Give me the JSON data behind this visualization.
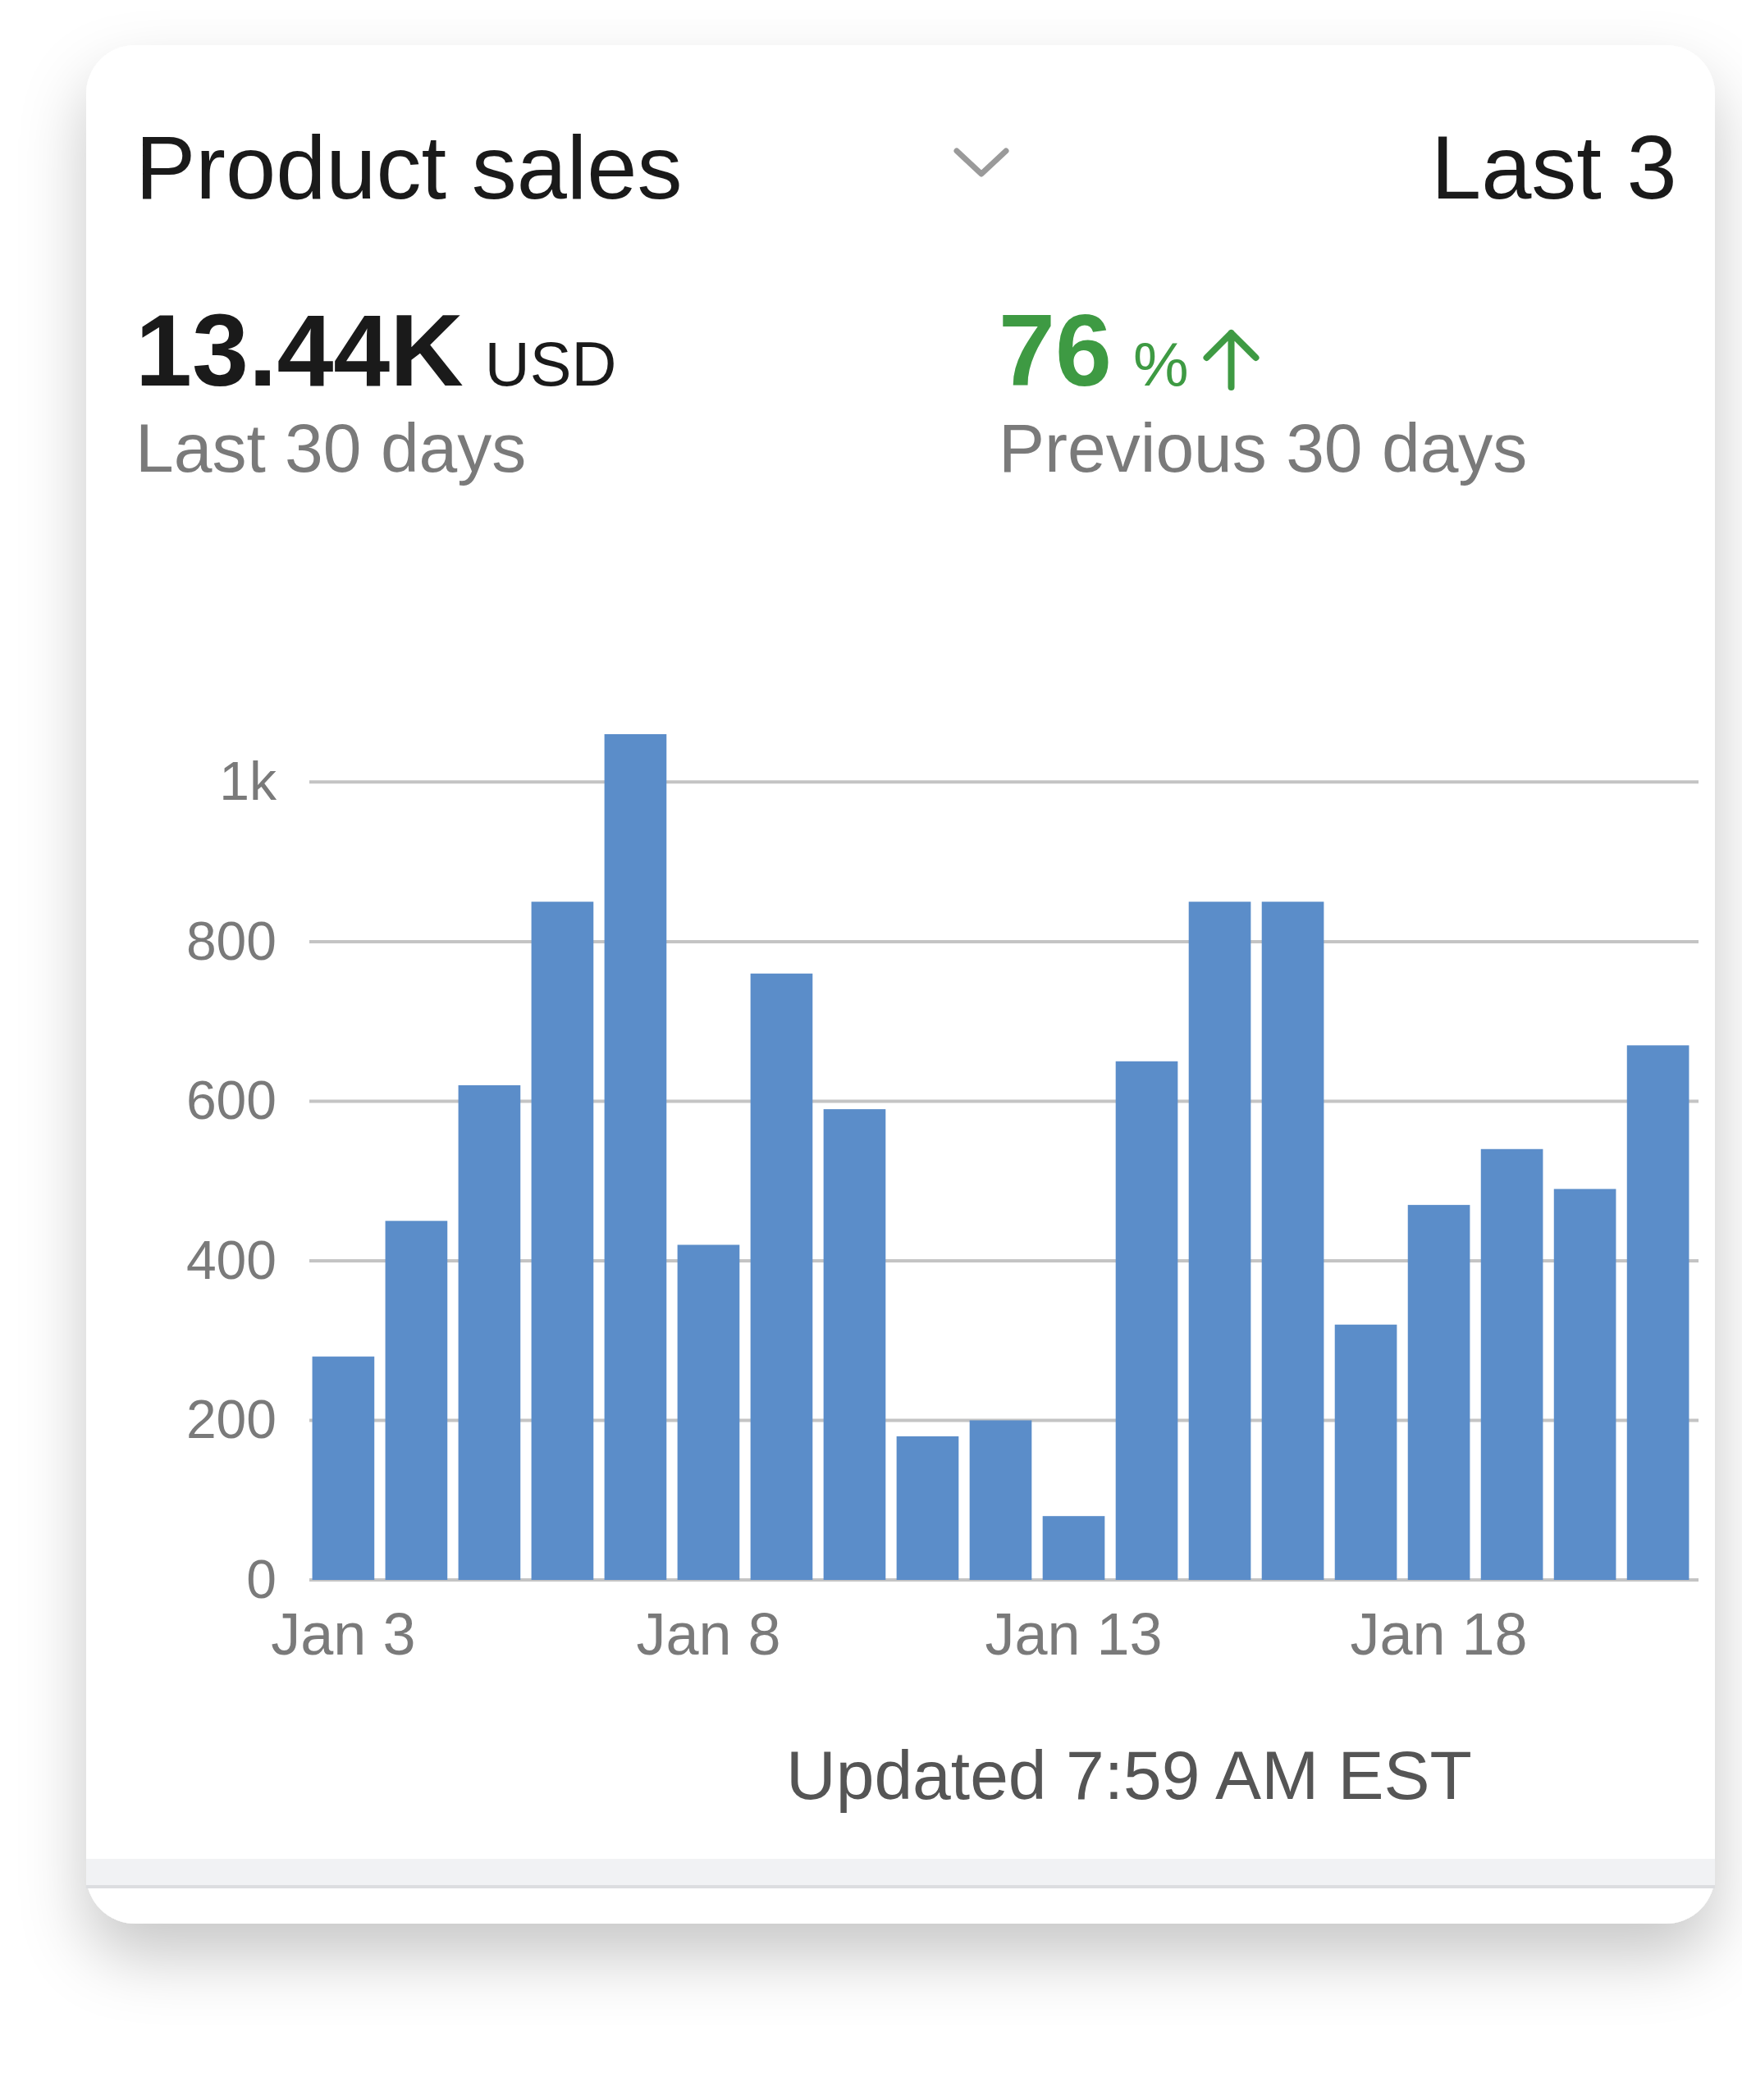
{
  "chart_data": {
    "type": "bar",
    "title": "Product sales",
    "categories": [
      "Jan 3",
      null,
      null,
      null,
      null,
      "Jan 8",
      null,
      null,
      null,
      null,
      "Jan 13",
      null,
      null,
      null,
      null,
      "Jan 18",
      null,
      null,
      null
    ],
    "values": [
      280,
      450,
      620,
      850,
      1060,
      420,
      760,
      590,
      180,
      200,
      80,
      650,
      850,
      850,
      320,
      470,
      540,
      490,
      670
    ],
    "color": "#5b8dc9",
    "ylim": [
      0,
      1060
    ],
    "yticks": [
      0,
      200,
      400,
      600,
      800,
      {
        "value": 1000,
        "label": "1k"
      }
    ],
    "grid": "y",
    "annotations": [
      "Last 3",
      "13.44K",
      "USD",
      "Last 30 days",
      "76",
      "%",
      "Previous 30 days",
      "Updated 7:59 AM EST"
    ]
  }
}
